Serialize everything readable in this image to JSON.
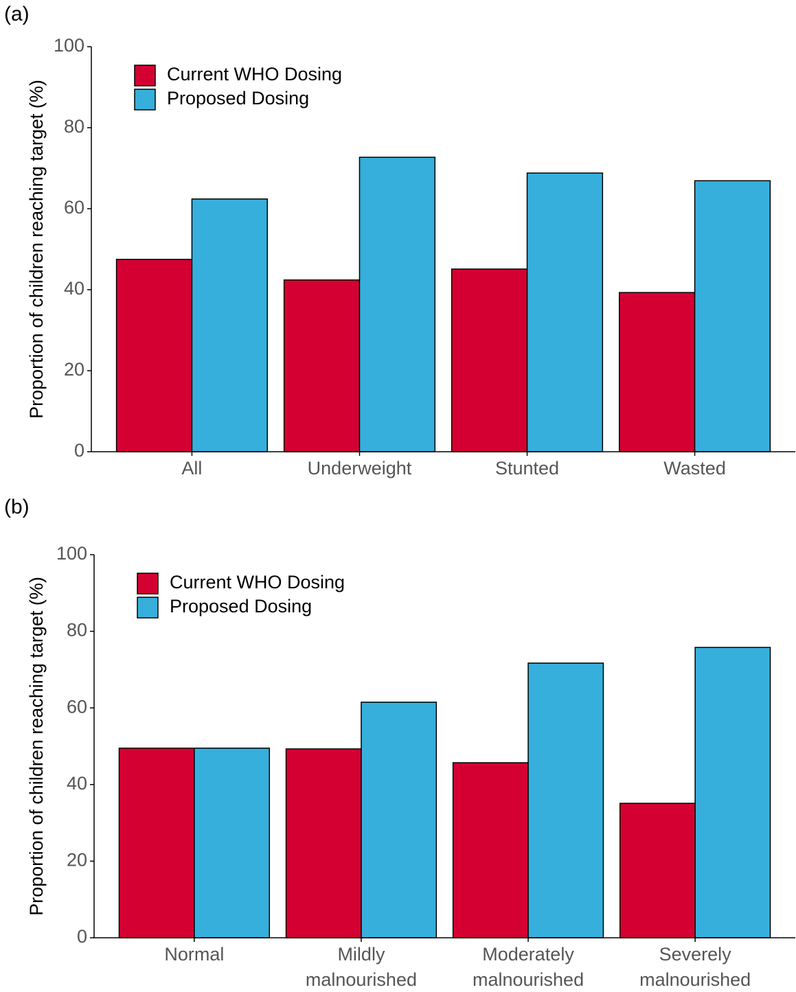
{
  "chart_data": [
    {
      "type": "bar",
      "panel": "(a)",
      "y_label": "Proportion of children reaching target (%)",
      "categories": [
        [
          "All"
        ],
        [
          "Underweight"
        ],
        [
          "Stunted"
        ],
        [
          "Wasted"
        ]
      ],
      "series": [
        {
          "name": "Current WHO Dosing",
          "color": "#d50032",
          "values": [
            47.5,
            42.4,
            45.1,
            39.3
          ]
        },
        {
          "name": "Proposed Dosing",
          "color": "#36afdc",
          "values": [
            62.4,
            72.7,
            68.8,
            66.9
          ]
        }
      ],
      "ylim": [
        0,
        100
      ],
      "yticks": [
        0,
        20,
        40,
        60,
        80,
        100
      ],
      "grid": false,
      "legend": "top-left"
    },
    {
      "type": "bar",
      "panel": "(b)",
      "y_label": "Proportion of children reaching target (%)",
      "categories": [
        [
          "Normal"
        ],
        [
          "Mildly",
          "malnourished"
        ],
        [
          "Moderately",
          "malnourished"
        ],
        [
          "Severely",
          "malnourished"
        ]
      ],
      "series": [
        {
          "name": "Current WHO Dosing",
          "color": "#d50032",
          "values": [
            49.5,
            49.3,
            45.7,
            35.1
          ]
        },
        {
          "name": "Proposed Dosing",
          "color": "#36afdc",
          "values": [
            49.5,
            61.5,
            71.7,
            75.8
          ]
        }
      ],
      "ylim": [
        0,
        100
      ],
      "yticks": [
        0,
        20,
        40,
        60,
        80,
        100
      ],
      "grid": false,
      "legend": "top-left"
    }
  ]
}
